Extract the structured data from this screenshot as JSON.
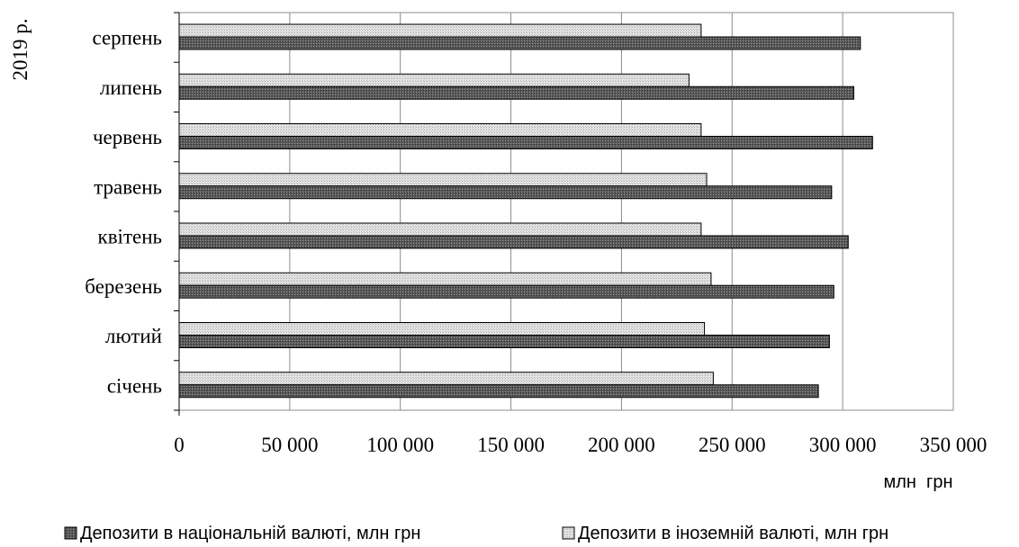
{
  "chart_data": {
    "type": "bar",
    "orientation": "horizontal",
    "year_label": "2019 р.",
    "categories": [
      "січень",
      "лютий",
      "березень",
      "квітень",
      "травень",
      "червень",
      "липень",
      "серпень"
    ],
    "series": [
      {
        "name": "Депозити в національній валюті, млн  грн",
        "values": [
          289000,
          294000,
          296000,
          302500,
          295000,
          313500,
          305000,
          308000
        ],
        "color": "#5a5a5a",
        "pattern": "dark-hatch"
      },
      {
        "name": "Депозити в іноземній валюті, млн  грн",
        "values": [
          241500,
          237500,
          240500,
          236000,
          238500,
          236000,
          230500,
          236000
        ],
        "color": "#d9d9d9",
        "pattern": "light-dots"
      }
    ],
    "xlim": [
      0,
      350000
    ],
    "x_ticks": [
      0,
      50000,
      100000,
      150000,
      200000,
      250000,
      300000,
      350000
    ],
    "x_tick_labels": [
      "0",
      "50 000",
      "100 000",
      "150 000",
      "200 000",
      "250 000",
      "300 000",
      "350 000"
    ],
    "xlabel": "млн  грн",
    "ylabel": "",
    "grid": "vertical",
    "legend_position": "bottom"
  }
}
